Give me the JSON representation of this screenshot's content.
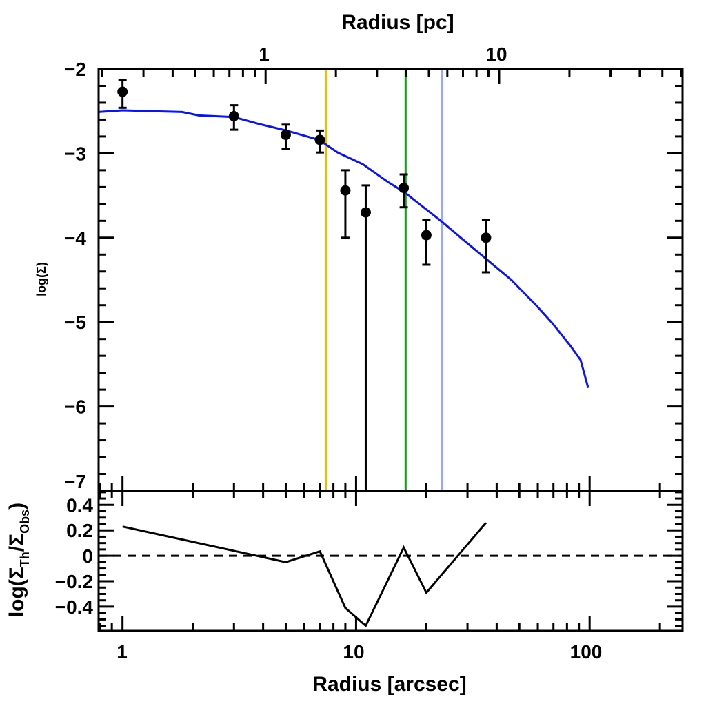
{
  "chart_data": [
    {
      "panel": "main",
      "type": "scatter",
      "xlabel": "Radius [arcsec]",
      "top_xlabel": "Radius [pc]",
      "ylabel": "log(Σ)",
      "xscale": "log",
      "xlim": [
        0.79,
        250
      ],
      "ylim": [
        -7,
        -2
      ],
      "x_ticks": [
        "1",
        "10",
        "100"
      ],
      "top_x_ticks": [
        "1",
        "10"
      ],
      "pc_per_arcsec": 0.244,
      "y_ticks": [
        "-2",
        "-3",
        "-4",
        "-5",
        "-6",
        "-7"
      ],
      "points": {
        "name": "observed",
        "color": "#000000",
        "x": [
          1,
          3,
          5,
          7,
          9,
          11,
          16,
          20,
          36
        ],
        "y": [
          -2.27,
          -2.56,
          -2.78,
          -2.84,
          -3.44,
          -3.7,
          -3.41,
          -3.97,
          -4.0
        ],
        "err_low": [
          -2.46,
          -2.72,
          -2.95,
          -2.99,
          -4.0,
          -7.0,
          -3.64,
          -4.32,
          -4.41
        ],
        "err_high": [
          -2.13,
          -2.43,
          -2.66,
          -2.73,
          -3.2,
          -3.38,
          -3.25,
          -3.79,
          -3.79
        ]
      },
      "model": {
        "name": "model",
        "color": "#0a14f0",
        "x": [
          0.79,
          1,
          1.8,
          2.12,
          3,
          3.82,
          5.03,
          6.93,
          8.34,
          10.7,
          13.7,
          16.1,
          23.3,
          27.8,
          46.2,
          59,
          69.6,
          83.2,
          91.5,
          98.6
        ],
        "y": [
          -2.51,
          -2.49,
          -2.51,
          -2.55,
          -2.57,
          -2.65,
          -2.73,
          -2.84,
          -2.99,
          -3.13,
          -3.34,
          -3.46,
          -3.81,
          -3.99,
          -4.5,
          -4.8,
          -5.02,
          -5.29,
          -5.45,
          -5.78
        ]
      },
      "vlines": [
        {
          "x": 7.43,
          "color": "#f5b800"
        },
        {
          "x": 16.3,
          "color": "#1a9a1a"
        },
        {
          "x": 23.4,
          "color": "#9ba4ff"
        }
      ]
    },
    {
      "panel": "residual",
      "type": "line",
      "xlabel": "Radius [arcsec]",
      "ylabel_main": "log(Σ",
      "ylabel_sub1": "Th",
      "ylabel_mid": "/Σ",
      "ylabel_sub2": "Obs",
      "ylabel_end": ")",
      "xscale": "log",
      "xlim": [
        0.79,
        250
      ],
      "ylim": [
        -0.59,
        0.51
      ],
      "y_ticks": [
        "0.4",
        "0.2",
        "0",
        "-0.2",
        "-0.4"
      ],
      "series": [
        {
          "name": "residual",
          "color": "#000000",
          "x": [
            1,
            5,
            7,
            9,
            11,
            16,
            20,
            36
          ],
          "y": [
            0.23,
            -0.05,
            0.035,
            -0.41,
            -0.55,
            0.065,
            -0.29,
            0.26
          ]
        }
      ],
      "reference_line": {
        "y": 0,
        "style": "dashed"
      }
    }
  ]
}
